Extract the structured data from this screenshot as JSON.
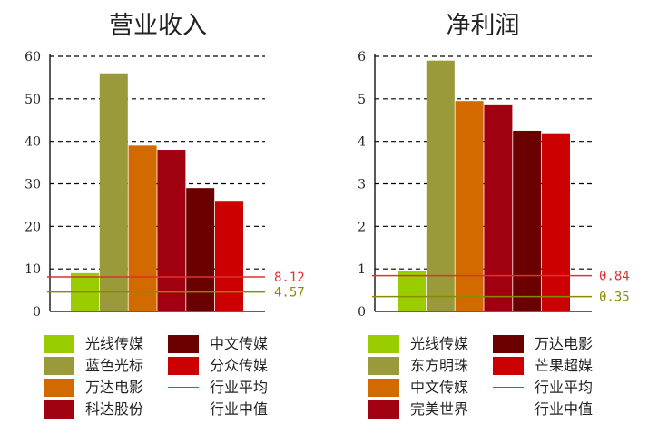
{
  "chart_data": [
    {
      "type": "bar",
      "title": "营业收入",
      "categories": [
        "光线传媒",
        "蓝色光标",
        "万达电影",
        "科达股份",
        "中文传媒",
        "分众传媒"
      ],
      "values": [
        9,
        56,
        39,
        38,
        29,
        26
      ],
      "colors": [
        "#9acd00",
        "#9a9a3a",
        "#d26a00",
        "#a00010",
        "#6a0000",
        "#cc0000"
      ],
      "ylim": [
        0,
        60
      ],
      "yticks": [
        0,
        10,
        20,
        30,
        40,
        50,
        60
      ],
      "grid": "dashed-horizontal",
      "reference_lines": [
        {
          "name": "行业平均",
          "value": 8.12,
          "label": "8.12",
          "color": "#e03030"
        },
        {
          "name": "行业中值",
          "value": 4.57,
          "label": "4.57",
          "color": "#8a8a00"
        }
      ],
      "legend_position": "bottom"
    },
    {
      "type": "bar",
      "title": "净利润",
      "categories": [
        "光线传媒",
        "东方明珠",
        "中文传媒",
        "完美世界",
        "万达电影",
        "芒果超媒"
      ],
      "values": [
        0.95,
        5.9,
        4.95,
        4.85,
        4.25,
        4.17
      ],
      "colors": [
        "#9acd00",
        "#9a9a3a",
        "#d26a00",
        "#a00010",
        "#6a0000",
        "#cc0000"
      ],
      "ylim": [
        0,
        6
      ],
      "yticks": [
        0,
        1,
        2,
        3,
        4,
        5,
        6
      ],
      "grid": "dashed-horizontal",
      "reference_lines": [
        {
          "name": "行业平均",
          "value": 0.84,
          "label": "0.84",
          "color": "#e03030"
        },
        {
          "name": "行业中值",
          "value": 0.35,
          "label": "0.35",
          "color": "#8a8a00"
        }
      ],
      "legend_position": "bottom"
    }
  ]
}
